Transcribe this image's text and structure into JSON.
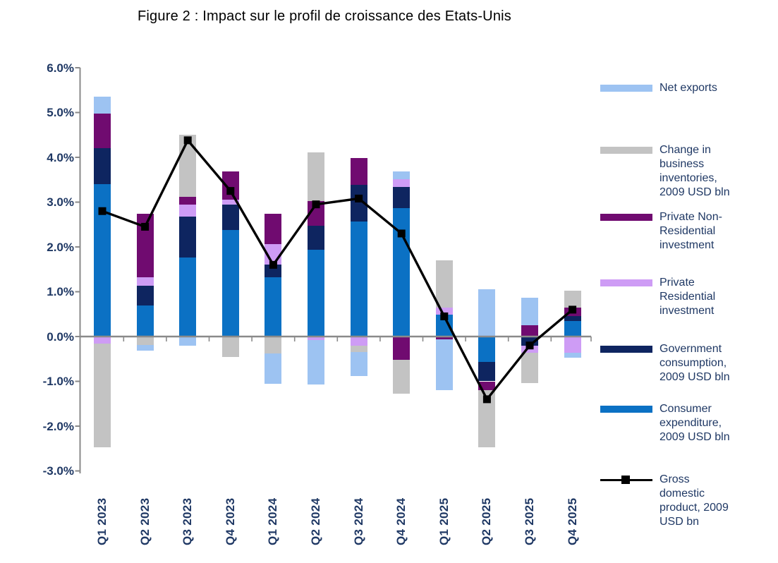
{
  "title": "Figure 2 : Impact sur le profil de croissance des Etats-Unis",
  "colors": {
    "consumer": "#0B71C4",
    "government": "#0E2560",
    "residential": "#CE9CF5",
    "nonresidential": "#700B70",
    "inventories": "#C3C3C3",
    "netexports": "#9DC3F2",
    "gdp_line": "#000000",
    "axis_line": "#8A8A8A",
    "axis_text": "#1F3864",
    "title_text": "#000000"
  },
  "chart_data": {
    "type": "bar",
    "stacked": true,
    "combo": "stacked columns with line overlay",
    "grid": false,
    "legend_position": "right",
    "ylim": [
      -3.0,
      6.0
    ],
    "yticks": [
      6,
      5,
      4,
      3,
      2,
      1,
      0,
      -1,
      -2,
      -3
    ],
    "ytick_labels": [
      "6.0%",
      "5.0%",
      "4.0%",
      "3.0%",
      "2.0%",
      "1.0%",
      "0.0%",
      "-1.0%",
      "-2.0%",
      "-3.0%"
    ],
    "categories": [
      "Q1 2023",
      "Q2 2023",
      "Q3 2023",
      "Q4 2023",
      "Q1 2024",
      "Q2 2024",
      "Q3 2024",
      "Q4 2024",
      "Q1 2025",
      "Q2 2025",
      "Q3 2025",
      "Q4 2025"
    ],
    "stacking_note": "positive values stack upward from zero and negative values stack downward from zero, in the series order given",
    "series": [
      {
        "id": "consumer",
        "name": "Consumer expenditure, 2009 USD bln",
        "color": "#0B71C4",
        "values": [
          3.4,
          0.7,
          1.76,
          2.38,
          1.32,
          1.94,
          2.56,
          2.86,
          0.49,
          -0.56,
          0.0,
          0.34
        ]
      },
      {
        "id": "government",
        "name": "Government consumption, 2009 USD bln",
        "color": "#0E2560",
        "values": [
          0.8,
          0.44,
          0.92,
          0.57,
          0.29,
          0.53,
          0.83,
          0.48,
          0.0,
          -0.44,
          -0.2,
          0.12
        ]
      },
      {
        "id": "residential",
        "name": "Private Residential investment",
        "color": "#CE9CF5",
        "values": [
          -0.15,
          0.18,
          0.27,
          0.11,
          0.45,
          -0.08,
          -0.2,
          0.17,
          0.15,
          0.0,
          -0.16,
          -0.36
        ]
      },
      {
        "id": "nonresidential",
        "name": "Private Non-Residential investment",
        "color": "#700B70",
        "values": [
          0.78,
          1.42,
          0.17,
          0.63,
          0.68,
          0.56,
          0.6,
          -0.52,
          -0.06,
          -0.19,
          0.25,
          0.18
        ]
      },
      {
        "id": "inventories",
        "name": "Change in business inventories, 2009 USD bln",
        "color": "#C3C3C3",
        "values": [
          -2.33,
          -0.19,
          1.38,
          -0.45,
          -0.38,
          1.08,
          -0.15,
          -0.76,
          1.06,
          -1.28,
          -0.68,
          0.38
        ]
      },
      {
        "id": "netexports",
        "name": "Net exports",
        "color": "#9DC3F2",
        "values": [
          0.37,
          -0.12,
          -0.2,
          0.0,
          -0.67,
          -0.99,
          -0.53,
          0.18,
          -1.14,
          1.05,
          0.62,
          -0.12
        ]
      }
    ],
    "line_series": {
      "id": "gdp",
      "name": "Gross domestic product, 2009 USD bn",
      "color": "#000000",
      "marker": "square",
      "values": [
        2.8,
        2.45,
        4.38,
        3.25,
        1.6,
        2.95,
        3.08,
        2.3,
        0.45,
        -1.4,
        -0.2,
        0.6
      ]
    }
  },
  "legend": {
    "items": [
      {
        "series_id": "netexports",
        "symbol": "swatch",
        "color": "#9DC3F2",
        "label": "Net exports"
      },
      {
        "series_id": "inventories",
        "symbol": "swatch",
        "color": "#C3C3C3",
        "label": "Change in\nbusiness\ninventories,\n2009 USD bln"
      },
      {
        "series_id": "nonresidential",
        "symbol": "swatch",
        "color": "#700B70",
        "label": "Private Non-\nResidential\ninvestment"
      },
      {
        "series_id": "residential",
        "symbol": "swatch",
        "color": "#CE9CF5",
        "label": "Private\nResidential\ninvestment"
      },
      {
        "series_id": "government",
        "symbol": "swatch",
        "color": "#0E2560",
        "label": "Government\nconsumption,\n2009 USD bln"
      },
      {
        "series_id": "consumer",
        "symbol": "swatch",
        "color": "#0B71C4",
        "label": "Consumer\nexpenditure,\n2009 USD bln"
      },
      {
        "series_id": "gdp",
        "symbol": "line-marker",
        "color": "#000000",
        "label": "Gross\ndomestic\nproduct, 2009\nUSD bn"
      }
    ]
  }
}
